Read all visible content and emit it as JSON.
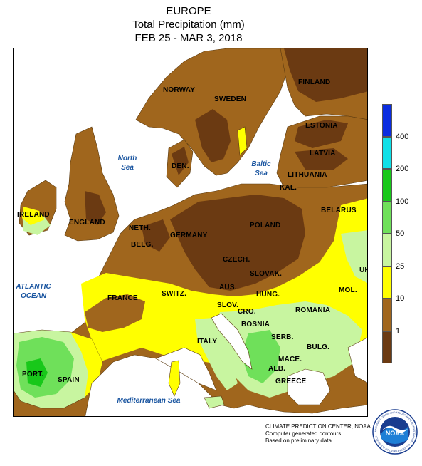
{
  "title": {
    "line1": "EUROPE",
    "line2": "Total Precipitation (mm)",
    "line3": "FEB 25 - MAR 3, 2018"
  },
  "colors": {
    "water": "#ffffff",
    "lt1": "#6b3a12",
    "r1_10": "#a0661d",
    "r10_25": "#ffff00",
    "r25_50": "#c8f5a0",
    "r50_100": "#6fe05a",
    "r100_200": "#18c81a",
    "r200_400": "#10e0e8",
    "gt400": "#0b2de0"
  },
  "legend": {
    "ticks": [
      "1",
      "10",
      "25",
      "50",
      "100",
      "200",
      "400"
    ]
  },
  "countries": {
    "norway": "NORWAY",
    "sweden": "SWEDEN",
    "finland": "FINLAND",
    "estonia": "ESTONIA",
    "latvia": "LATVIA",
    "lithuania": "LITHUANIA",
    "kal": "KAL.",
    "belarus": "BELARUS",
    "den": "DEN.",
    "ireland": "IRELAND",
    "england": "ENGLAND",
    "neth": "NETH.",
    "germany": "GERMANY",
    "poland": "POLAND",
    "belg": "BELG.",
    "czech": "CZECH.",
    "slovak": "SLOVAK.",
    "ukr": "UKR.",
    "france": "FRANCE",
    "switz": "SWITZ.",
    "aus": "AUS.",
    "hung": "HUNG.",
    "mol": "MOL.",
    "slov": "SLOV.",
    "cro": "CRO.",
    "romania": "ROMANIA",
    "bosnia": "BOSNIA",
    "serb": "SERB.",
    "italy": "ITALY",
    "bulg": "BULG.",
    "mace": "MACE.",
    "alb": "ALB.",
    "greece": "GREECE",
    "port": "PORT.",
    "spain": "SPAIN"
  },
  "seas": {
    "north_sea": "North Sea",
    "baltic_sea": "Baltic Sea",
    "atlantic_ocean": "ATLANTIC OCEAN",
    "mediterranean": "Mediterranean Sea"
  },
  "credits": {
    "line1": "CLIMATE PREDICTION CENTER, NOAA",
    "line2": "Computer generated contours",
    "line3": "Based on preliminary data"
  },
  "logo": {
    "text": "NOAA",
    "ring_text": "NATIONAL OCEANIC AND ATMOSPHERIC ADMINISTRATION · U.S. DEPARTMENT OF COMMERCE",
    "icon": "noaa-seagull-logo"
  }
}
